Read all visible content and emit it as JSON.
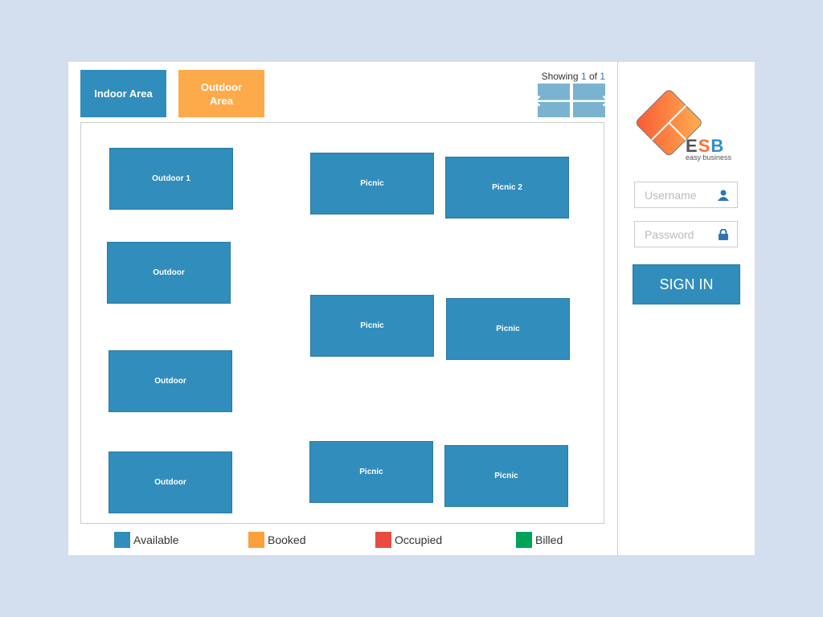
{
  "areas": {
    "indoor": "Indoor Area",
    "outdoor_line1": "Outdoor",
    "outdoor_line2": "Area"
  },
  "pagination": {
    "prefix": "Showing ",
    "current": "1",
    "of": " of ",
    "total": "1"
  },
  "tables": [
    "Outdoor 1",
    "Picnic",
    "Picnic 2",
    "Outdoor",
    "Picnic",
    "Picnic",
    "Outdoor",
    "Outdoor",
    "Picnic",
    "Picnic"
  ],
  "legend": [
    {
      "label": "Available",
      "color": "#318dbb"
    },
    {
      "label": "Booked",
      "color": "#fba03a"
    },
    {
      "label": "Occupied",
      "color": "#e84c3d"
    },
    {
      "label": "Billed",
      "color": "#00a25a"
    }
  ],
  "logo": {
    "letters": "ESB",
    "tagline": "easy business"
  },
  "login": {
    "username_placeholder": "Username",
    "password_placeholder": "Password",
    "sign_in": "SIGN IN"
  },
  "colors": {
    "accent": "#318dbb",
    "outdoor": "#fdab4a"
  }
}
